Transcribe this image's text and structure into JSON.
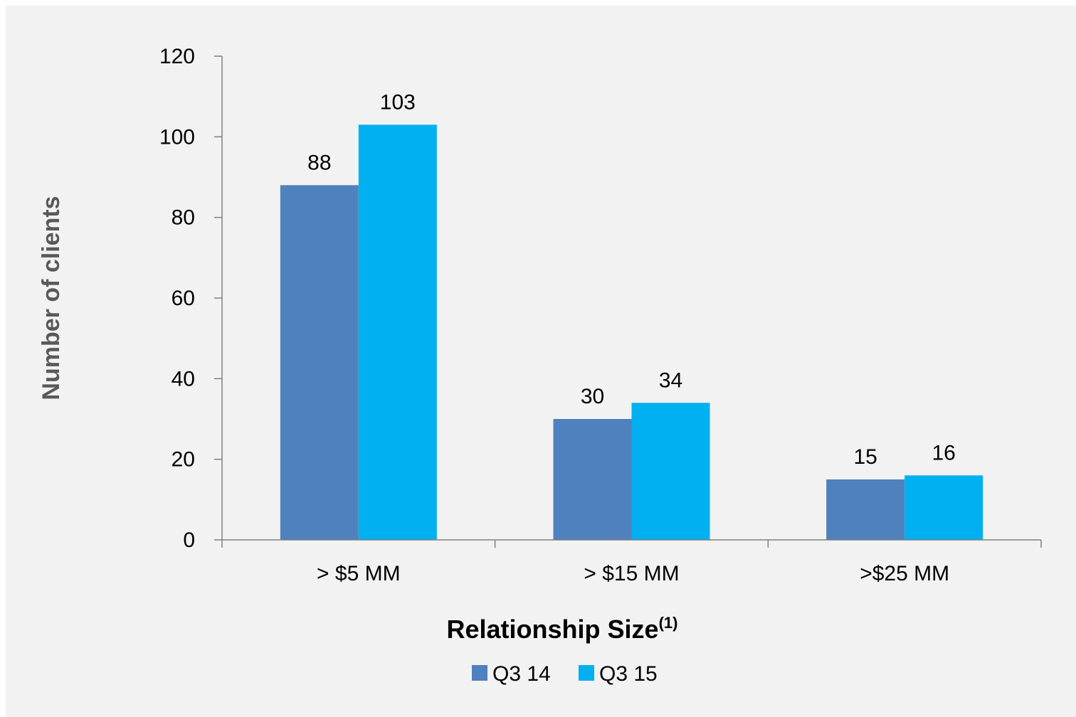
{
  "chart_data": {
    "type": "bar",
    "title": "",
    "xlabel": "Relationship Size",
    "xlabel_superscript": "(1)",
    "ylabel": "Number of clients",
    "categories": [
      "> $5 MM",
      "> $15 MM",
      ">$25 MM"
    ],
    "series": [
      {
        "name": "Q3 14",
        "values": [
          88,
          30,
          15
        ],
        "color": "#4f81bd"
      },
      {
        "name": "Q3 15",
        "values": [
          103,
          34,
          16
        ],
        "color": "#00b0f0"
      }
    ],
    "ylim": [
      0,
      120
    ],
    "yticks": [
      0,
      20,
      40,
      60,
      80,
      100,
      120
    ],
    "grid": false,
    "legend_position": "bottom",
    "data_labels": true,
    "background": "#f2f2f2",
    "axis_color": "#808080"
  }
}
